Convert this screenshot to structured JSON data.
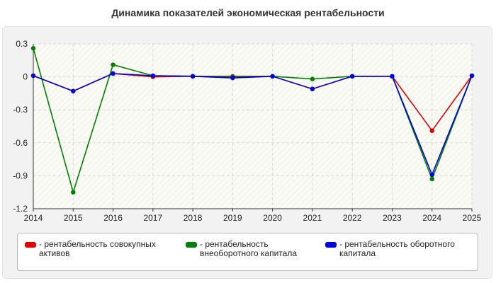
{
  "chart_data": {
    "type": "line",
    "title": "Динамика показателей экономическая рентабельности",
    "xlabel": "",
    "ylabel": "",
    "x": [
      "2014",
      "2015",
      "2016",
      "2017",
      "2018",
      "2019",
      "2020",
      "2021",
      "2022",
      "2023",
      "2024",
      "2025"
    ],
    "ylim": [
      -1.2,
      0.3
    ],
    "yticks": [
      "0.3",
      "0",
      "-0.3",
      "-0.6",
      "-0.9",
      "-1.2"
    ],
    "yticks_values": [
      0.3,
      0,
      -0.3,
      -0.6,
      -0.9,
      -1.2
    ],
    "grid": true,
    "legend_position": "bottom",
    "series": [
      {
        "name": "- рентабельность совокупных активов",
        "color": "#e00000",
        "values": [
          0.01,
          -0.13,
          0.03,
          0.0,
          0.005,
          0.005,
          0.005,
          -0.11,
          0.005,
          0.005,
          -0.49,
          0.01
        ]
      },
      {
        "name": "- рентабельность внеоборотного капитала",
        "color": "#008000",
        "values": [
          0.26,
          -1.05,
          0.11,
          0.01,
          0.005,
          0.0,
          0.005,
          -0.02,
          0.005,
          0.005,
          -0.93,
          0.01
        ]
      },
      {
        "name": "- рентабельность оборотного капитала",
        "color": "#0000e0",
        "values": [
          0.01,
          -0.13,
          0.03,
          0.01,
          0.005,
          -0.01,
          0.005,
          -0.11,
          0.005,
          0.005,
          -0.89,
          0.01
        ]
      }
    ]
  }
}
